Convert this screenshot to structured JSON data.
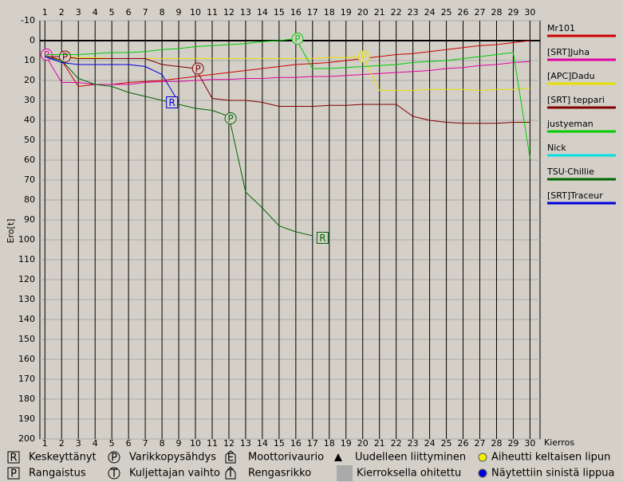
{
  "chart_data": {
    "type": "line",
    "y_label": "Ero[t]",
    "x_label": "Kierros",
    "x": [
      1,
      2,
      3,
      4,
      5,
      6,
      7,
      8,
      9,
      10,
      11,
      12,
      13,
      14,
      15,
      16,
      17,
      18,
      19,
      20,
      21,
      22,
      23,
      24,
      25,
      26,
      27,
      28,
      29,
      30
    ],
    "xlim": [
      0.7,
      30.6
    ],
    "xticks": [
      1,
      2,
      3,
      4,
      5,
      6,
      7,
      8,
      9,
      10,
      11,
      12,
      13,
      14,
      15,
      16,
      17,
      18,
      19,
      20,
      21,
      22,
      23,
      24,
      25,
      26,
      27,
      28,
      29,
      30
    ],
    "ylim": [
      -10,
      200
    ],
    "yticks": [
      -10,
      0,
      10,
      20,
      30,
      40,
      50,
      60,
      70,
      80,
      90,
      100,
      110,
      120,
      130,
      140,
      150,
      160,
      170,
      180,
      190,
      200
    ],
    "grid": true,
    "series": [
      {
        "name": "Mr101",
        "color": "#cc0000",
        "values": [
          7,
          10,
          23,
          22,
          22,
          21,
          20.5,
          20,
          19,
          18,
          17,
          16,
          15,
          14,
          13,
          12,
          11.5,
          11,
          10,
          9,
          8,
          7,
          6.5,
          5.5,
          4.5,
          3.5,
          2.5,
          2,
          1,
          0
        ],
        "markers": []
      },
      {
        "name": "[SRT]Juha",
        "color": "#e000a0",
        "values": [
          7,
          21,
          21,
          22,
          22,
          22,
          21,
          20.5,
          20.5,
          20,
          19.5,
          19.5,
          19,
          19,
          18.5,
          18.5,
          18,
          18,
          17.5,
          17,
          16.5,
          16,
          15.5,
          15,
          14,
          13.5,
          12.5,
          12,
          11,
          10.5
        ],
        "markers": [
          {
            "lap": 1.1,
            "value": 7,
            "label": "P"
          }
        ]
      },
      {
        "name": "[APC]Dadu",
        "color": "#e8e000",
        "values": [
          8,
          8,
          8.5,
          8.5,
          9,
          9,
          9,
          9,
          9,
          9,
          9,
          9,
          9,
          9,
          9,
          9,
          9,
          8.5,
          8.5,
          8,
          25,
          25,
          25,
          24.5,
          24.5,
          24.5,
          25,
          24.5,
          24.5,
          24
        ],
        "markers": [
          {
            "lap": 20.07,
            "value": 8,
            "label": "P"
          }
        ]
      },
      {
        "name": "[SRT] teppari",
        "color": "#800000",
        "values": [
          8,
          8,
          9,
          9,
          9,
          9,
          9,
          12,
          13,
          14,
          29,
          30,
          30,
          31,
          33,
          33,
          33,
          32.5,
          32.5,
          32,
          32,
          32,
          38,
          40,
          41,
          41.5,
          41.5,
          41.5,
          41,
          41
        ],
        "markers": [
          {
            "lap": 2.2,
            "value": 8,
            "label": "P"
          },
          {
            "lap": 10.15,
            "value": 14,
            "label": "P"
          }
        ]
      },
      {
        "name": "justyeman",
        "color": "#00cc00",
        "values": [
          7,
          7,
          7,
          6.5,
          6,
          6,
          5.5,
          4.5,
          4,
          3,
          2.5,
          2,
          1.5,
          0.5,
          0,
          -1,
          14,
          14,
          13.5,
          13,
          12.5,
          12,
          11,
          10.5,
          10,
          9,
          8,
          7,
          6,
          59
        ],
        "markers": [
          {
            "lap": 16.1,
            "value": -1,
            "label": "P"
          }
        ]
      },
      {
        "name": "Nick",
        "color": "#00e0e0",
        "values": [
          null,
          null,
          null,
          null,
          null,
          null,
          null,
          null,
          null,
          null,
          null,
          null,
          null,
          null,
          null,
          null,
          null,
          null,
          null,
          null,
          null,
          null,
          null,
          null,
          null,
          null,
          null,
          null,
          null,
          null
        ],
        "markers": []
      },
      {
        "name": "TSU·Chillie",
        "color": "#006600",
        "values": [
          8,
          10,
          19,
          22,
          23,
          26,
          28,
          30,
          32,
          34,
          35,
          38,
          76,
          84,
          93,
          96,
          98,
          null,
          null,
          null,
          null,
          null,
          null,
          null,
          null,
          null,
          null,
          null,
          null,
          null
        ],
        "markers": [
          {
            "lap": 12.1,
            "value": 39,
            "label": "P"
          },
          {
            "lap": 17.6,
            "value": 99,
            "label": "R",
            "box": true
          }
        ]
      },
      {
        "name": "[SRT]Traceur",
        "color": "#0000dd",
        "values": [
          8,
          11,
          12,
          12,
          12,
          12,
          13,
          17,
          31,
          null,
          null,
          null,
          null,
          null,
          null,
          null,
          null,
          null,
          null,
          null,
          null,
          null,
          null,
          null,
          null,
          null,
          null,
          null,
          null,
          null
        ],
        "markers": [
          {
            "lap": 8.6,
            "value": 31,
            "label": "R",
            "box": true
          }
        ]
      }
    ],
    "symbol_legend": [
      {
        "symbol": "R",
        "shape": "box",
        "label": "Keskeyttänyt"
      },
      {
        "symbol": "P",
        "shape": "circle",
        "label": "Varikkopysähdys"
      },
      {
        "symbol": "E",
        "shape": "pentagon",
        "label": "Moottorivaurio"
      },
      {
        "shape": "triangle",
        "label": "Uudelleen liittyminen"
      },
      {
        "shape": "yellow-dot",
        "label": "Aiheutti keltaisen lipun"
      },
      {
        "symbol": "P",
        "shape": "box",
        "label": "Rangaistus"
      },
      {
        "symbol": "T",
        "shape": "circle",
        "label": "Kuljettajan vaihto"
      },
      {
        "symbol": "T",
        "shape": "house",
        "label": "Rengasrikko"
      },
      {
        "shape": "gray-box",
        "label": "Kierroksella ohitettu"
      },
      {
        "shape": "blue-dot",
        "label": "Näytettiin sinistä lippua"
      }
    ]
  }
}
